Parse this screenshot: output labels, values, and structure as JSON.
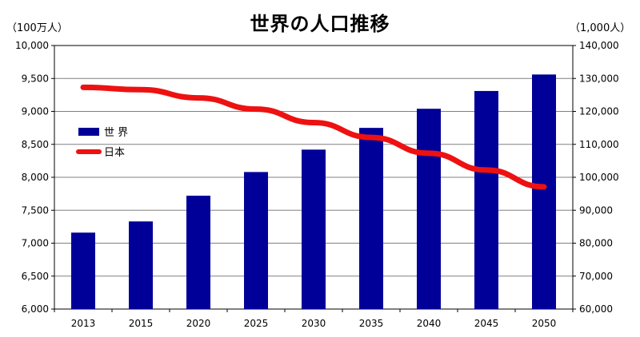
{
  "chart_data": {
    "type": "bar",
    "title": "世界の人口推移",
    "left_axis_unit": "（100万人）",
    "right_axis_unit": "（1,000人）",
    "categories": [
      "2013",
      "2015",
      "2020",
      "2025",
      "2030",
      "2035",
      "2040",
      "2045",
      "2050"
    ],
    "series": [
      {
        "name": "世 界",
        "type": "bar",
        "axis": "left",
        "color": "#000099",
        "values": [
          7160,
          7330,
          7720,
          8080,
          8420,
          8750,
          9040,
          9310,
          9560
        ]
      },
      {
        "name": "日本",
        "type": "line",
        "axis": "right",
        "color": "#ee1111",
        "values": [
          127300,
          126600,
          124100,
          120700,
          116600,
          112100,
          107300,
          102200,
          97100
        ]
      }
    ],
    "left_axis": {
      "ylim": [
        6000,
        10000
      ],
      "ticks": [
        6000,
        6500,
        7000,
        7500,
        8000,
        8500,
        9000,
        9500,
        10000
      ],
      "tick_labels": [
        "6,000",
        "6,500",
        "7,000",
        "7,500",
        "8,000",
        "8,500",
        "9,000",
        "9,500",
        "10,000"
      ]
    },
    "right_axis": {
      "ylim": [
        60000,
        140000
      ],
      "ticks": [
        60000,
        70000,
        80000,
        90000,
        100000,
        110000,
        120000,
        130000,
        140000
      ],
      "tick_labels": [
        "60,000",
        "70,000",
        "80,000",
        "90,000",
        "100,000",
        "110,000",
        "120,000",
        "130,000",
        "140,000"
      ]
    },
    "grid": true,
    "legend_placement": "left-middle"
  }
}
